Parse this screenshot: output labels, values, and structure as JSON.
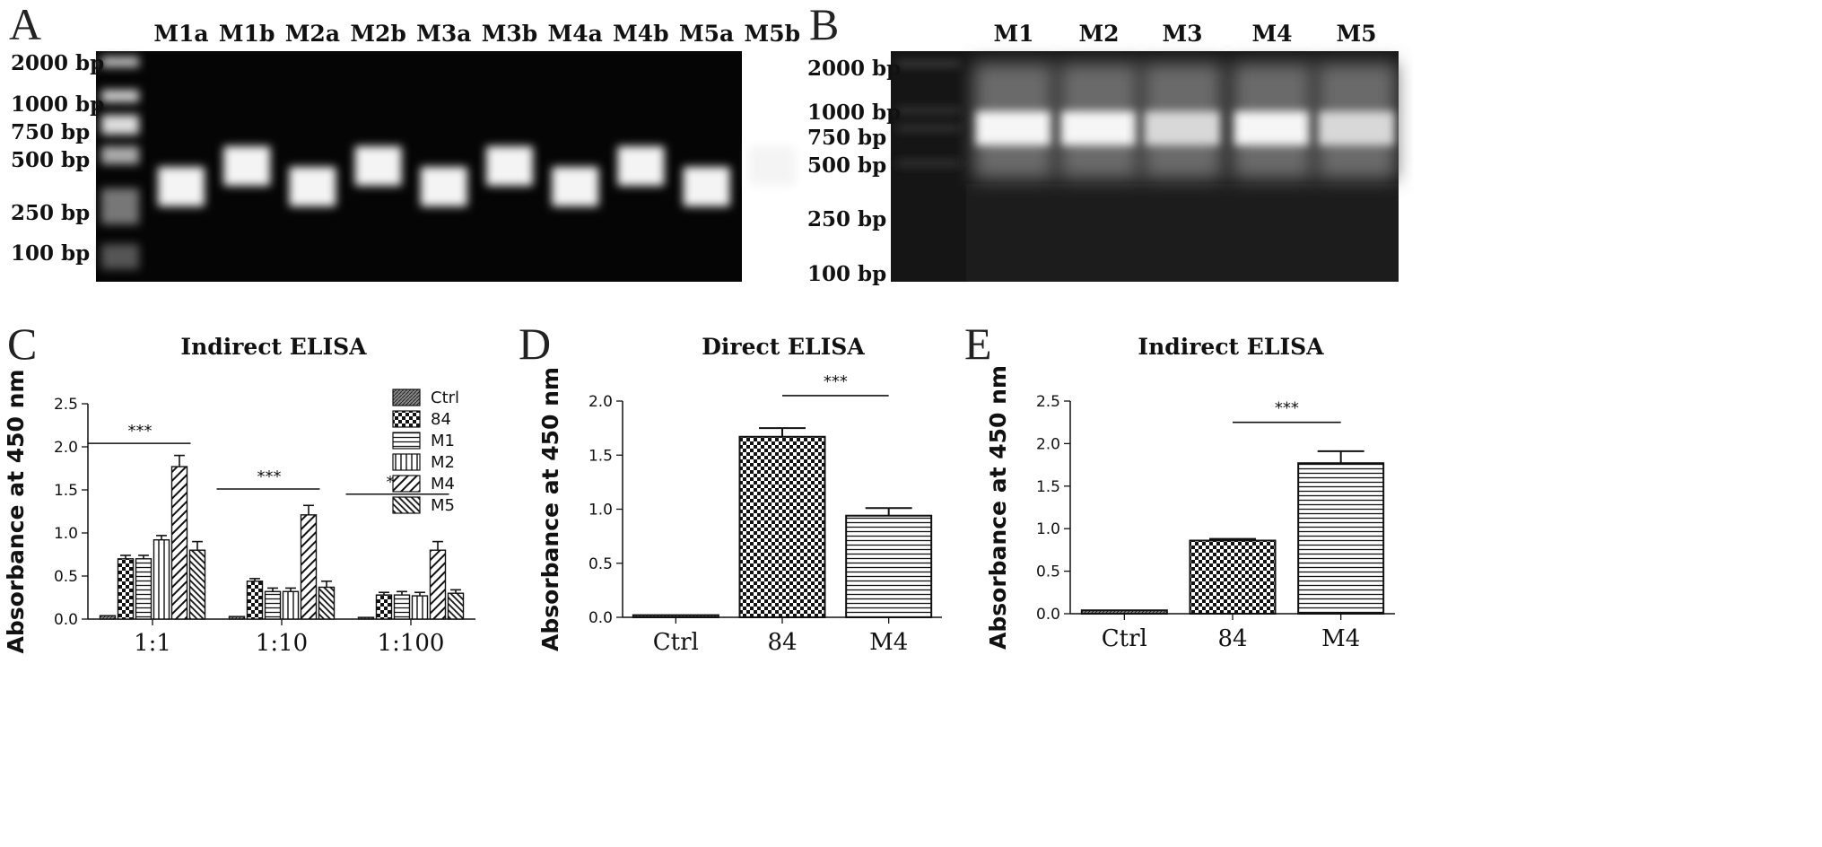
{
  "panels": {
    "A": {
      "letter": "A",
      "lanes": [
        "M1a",
        "M1b",
        "M2a",
        "M2b",
        "M3a",
        "M3b",
        "M4a",
        "M4b",
        "M5a",
        "M5b"
      ],
      "ladder": [
        "2000 bp",
        "1000 bp",
        "750 bp",
        "500 bp",
        "250 bp",
        "100 bp"
      ]
    },
    "B": {
      "letter": "B",
      "lanes": [
        "M1",
        "M2",
        "M3",
        "M4",
        "M5"
      ],
      "ladder": [
        "2000 bp",
        "1000 bp",
        "750 bp",
        "500 bp",
        "250 bp",
        "100 bp"
      ]
    },
    "C": {
      "letter": "C"
    },
    "D": {
      "letter": "D"
    },
    "E": {
      "letter": "E"
    }
  },
  "colors": {
    "gel_background": "#050505",
    "bar_stroke": "#111111",
    "bar_fill": "#ffffff"
  },
  "chart_data": [
    {
      "id": "C",
      "type": "bar",
      "title": "Indirect ELISA",
      "ylabel": "Absorbance at 450 nm",
      "xlabel": "",
      "ylim": [
        0,
        2.5
      ],
      "yticks": [
        "0.0",
        "0.5",
        "1.0",
        "1.5",
        "2.0",
        "2.5"
      ],
      "categories": [
        "1:1",
        "1:10",
        "1:100"
      ],
      "legend_position": "top-right",
      "series": [
        {
          "name": "Ctrl",
          "pattern": "solid-hatch",
          "values": [
            0.04,
            0.03,
            0.02
          ],
          "errors": [
            0.0,
            0.0,
            0.0
          ]
        },
        {
          "name": "84",
          "pattern": "checker",
          "values": [
            0.7,
            0.44,
            0.28
          ],
          "errors": [
            0.04,
            0.03,
            0.03
          ]
        },
        {
          "name": "M1",
          "pattern": "horizontal",
          "values": [
            0.7,
            0.32,
            0.28
          ],
          "errors": [
            0.04,
            0.04,
            0.04
          ]
        },
        {
          "name": "M2",
          "pattern": "vertical",
          "values": [
            0.92,
            0.32,
            0.27
          ],
          "errors": [
            0.05,
            0.04,
            0.04
          ]
        },
        {
          "name": "M4",
          "pattern": "diagonal",
          "values": [
            1.77,
            1.21,
            0.8
          ],
          "errors": [
            0.13,
            0.11,
            0.1
          ]
        },
        {
          "name": "M5",
          "pattern": "diagonal-dense",
          "values": [
            0.8,
            0.37,
            0.3
          ],
          "errors": [
            0.1,
            0.07,
            0.04
          ]
        }
      ],
      "significance": [
        {
          "label": "***",
          "group": 0,
          "y": 2.04
        },
        {
          "label": "***",
          "group": 1,
          "y": 1.51
        },
        {
          "label": "***",
          "group": 2,
          "y": 1.45
        }
      ]
    },
    {
      "id": "D",
      "type": "bar",
      "title": "Direct ELISA",
      "ylabel": "Absorbance at 450 nm",
      "xlabel": "",
      "ylim": [
        0,
        2.0
      ],
      "yticks": [
        "0.0",
        "0.5",
        "1.0",
        "1.5",
        "2.0"
      ],
      "categories": [
        "Ctrl",
        "84",
        "M4"
      ],
      "patterns": [
        "solid-hatch",
        "checker",
        "horizontal"
      ],
      "values": [
        0.02,
        1.67,
        0.94
      ],
      "errors": [
        0.0,
        0.08,
        0.07
      ],
      "significance": [
        {
          "label": "***",
          "from": 1,
          "to": 2,
          "y": 2.05
        }
      ]
    },
    {
      "id": "E",
      "type": "bar",
      "title": "Indirect ELISA",
      "ylabel": "Absorbance at 450 nm",
      "xlabel": "",
      "ylim": [
        0,
        2.5
      ],
      "yticks": [
        "0.0",
        "0.5",
        "1.0",
        "1.5",
        "2.0",
        "2.5"
      ],
      "categories": [
        "Ctrl",
        "84",
        "M4"
      ],
      "patterns": [
        "solid-hatch",
        "checker",
        "horizontal"
      ],
      "values": [
        0.04,
        0.86,
        1.77
      ],
      "errors": [
        0.0,
        0.02,
        0.14
      ],
      "significance": [
        {
          "label": "***",
          "from": 1,
          "to": 2,
          "y": 2.25
        }
      ]
    }
  ]
}
